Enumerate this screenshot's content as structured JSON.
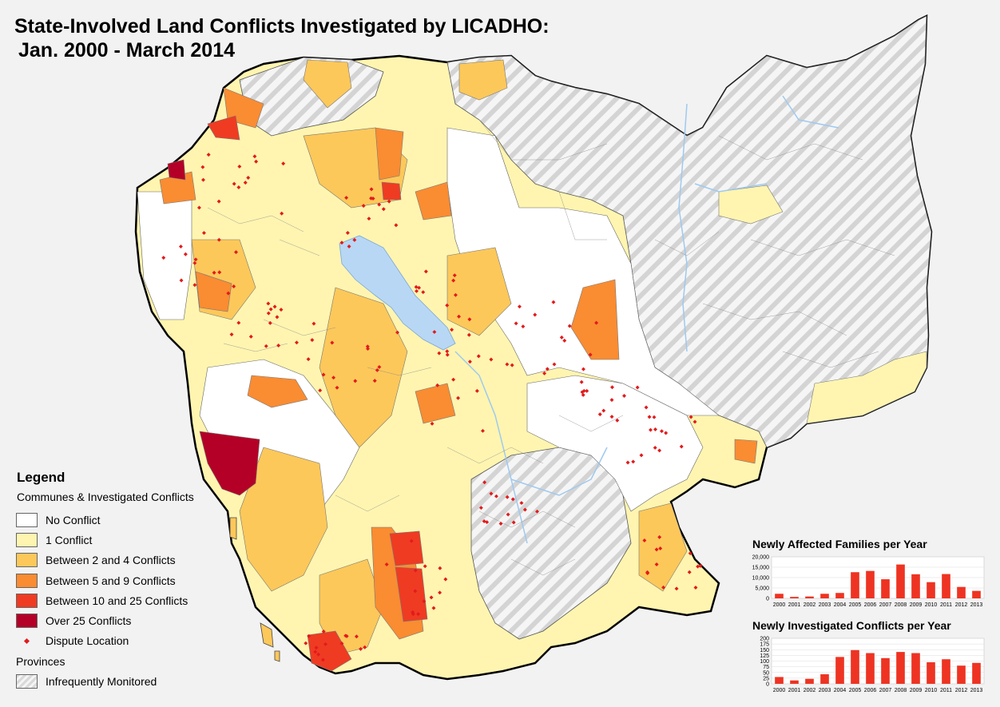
{
  "title": {
    "line1": "State-Involved Land Conflicts Investigated by LICADHO:",
    "line2": "Jan. 2000 - March 2014"
  },
  "legend": {
    "heading": "Legend",
    "subheading": "Communes & Investigated Conflicts",
    "items": [
      {
        "label": "No Conflict",
        "color": "#ffffff"
      },
      {
        "label": "1 Conflict",
        "color": "#fff5b0"
      },
      {
        "label": "Between 2 and 4 Conflicts",
        "color": "#fdc85a"
      },
      {
        "label": "Between 5 and 9 Conflicts",
        "color": "#fa8c32"
      },
      {
        "label": "Between 10 and 25 Conflicts",
        "color": "#ef3b22"
      },
      {
        "label": "Over 25 Conflicts",
        "color": "#b40026"
      }
    ],
    "dispute_label": "Dispute Location",
    "provinces_label": "Provinces",
    "monitored_label": "Infrequently Monitored"
  },
  "colors": {
    "lake": "#b8d7f5",
    "river": "#9ec9f0",
    "dispute": "#e31a1c",
    "bar": "#ee3322"
  },
  "chart_data": [
    {
      "type": "bar",
      "title": "Newly Affected Families per Year",
      "categories": [
        "2000",
        "2001",
        "2002",
        "2003",
        "2004",
        "2005",
        "2006",
        "2007",
        "2008",
        "2009",
        "2010",
        "2011",
        "2012",
        "2013"
      ],
      "values": [
        2200,
        700,
        900,
        2200,
        2600,
        12600,
        13200,
        9200,
        16300,
        11600,
        7800,
        11700,
        5500,
        3600
      ],
      "yticks": [
        "0",
        "5,000",
        "10,000",
        "15,000",
        "20,000"
      ],
      "ylim": [
        0,
        20000
      ]
    },
    {
      "type": "bar",
      "title": "Newly Investigated Conflicts per Year",
      "categories": [
        "2000",
        "2001",
        "2002",
        "2003",
        "2004",
        "2005",
        "2006",
        "2007",
        "2008",
        "2009",
        "2010",
        "2011",
        "2012",
        "2013"
      ],
      "values": [
        30,
        15,
        22,
        42,
        118,
        148,
        135,
        113,
        140,
        135,
        95,
        108,
        80,
        92
      ],
      "yticks": [
        "0",
        "25",
        "50",
        "75",
        "100",
        "125",
        "150",
        "175",
        "200"
      ],
      "ylim": [
        0,
        200
      ]
    }
  ]
}
